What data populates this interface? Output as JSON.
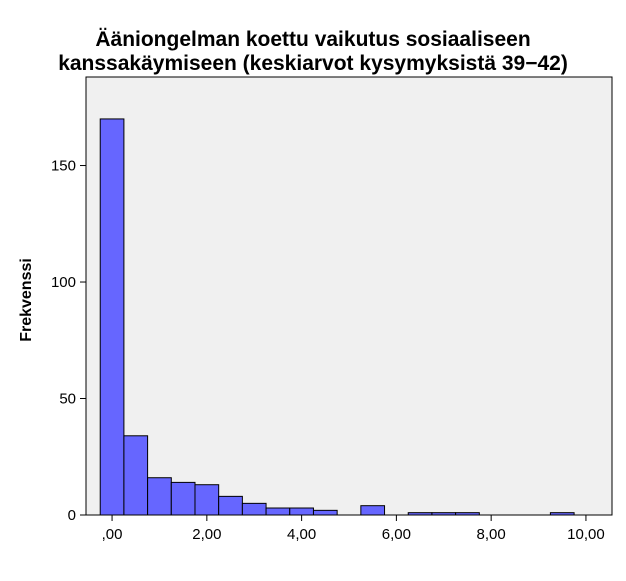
{
  "chart_data": {
    "type": "bar",
    "title_line1": "Ääniongelman koettu vaikutus sosiaaliseen",
    "title_line2": "kanssakäymiseen (keskiarvot kysymyksistä 39−42)",
    "xlabel": "",
    "ylabel": "Frekvenssi",
    "bin_width": 0.5,
    "bins": [
      {
        "start": -0.25,
        "end": 0.25,
        "count": 170
      },
      {
        "start": 0.25,
        "end": 0.75,
        "count": 34
      },
      {
        "start": 0.75,
        "end": 1.25,
        "count": 16
      },
      {
        "start": 1.25,
        "end": 1.75,
        "count": 14
      },
      {
        "start": 1.75,
        "end": 2.25,
        "count": 13
      },
      {
        "start": 2.25,
        "end": 2.75,
        "count": 8
      },
      {
        "start": 2.75,
        "end": 3.25,
        "count": 5
      },
      {
        "start": 3.25,
        "end": 3.75,
        "count": 3
      },
      {
        "start": 3.75,
        "end": 4.25,
        "count": 3
      },
      {
        "start": 4.25,
        "end": 4.75,
        "count": 2
      },
      {
        "start": 5.25,
        "end": 5.75,
        "count": 4
      },
      {
        "start": 6.25,
        "end": 6.75,
        "count": 1
      },
      {
        "start": 6.75,
        "end": 7.25,
        "count": 1
      },
      {
        "start": 7.25,
        "end": 7.75,
        "count": 1
      },
      {
        "start": 9.25,
        "end": 9.75,
        "count": 1
      }
    ],
    "xlim": [
      -0.55,
      10.55
    ],
    "ylim": [
      0,
      188
    ],
    "x_ticks": [
      {
        "value": 0,
        "label": ",00"
      },
      {
        "value": 2,
        "label": "2,00"
      },
      {
        "value": 4,
        "label": "4,00"
      },
      {
        "value": 6,
        "label": "6,00"
      },
      {
        "value": 8,
        "label": "8,00"
      },
      {
        "value": 10,
        "label": "10,00"
      }
    ],
    "y_ticks": [
      {
        "value": 0,
        "label": "0"
      },
      {
        "value": 50,
        "label": "50"
      },
      {
        "value": 100,
        "label": "100"
      },
      {
        "value": 150,
        "label": "150"
      }
    ],
    "grid": false,
    "colors": {
      "bar_fill": "#6666ff",
      "bar_stroke": "#000000",
      "plot_background": "#f0f0f0",
      "axis": "#000000"
    }
  }
}
